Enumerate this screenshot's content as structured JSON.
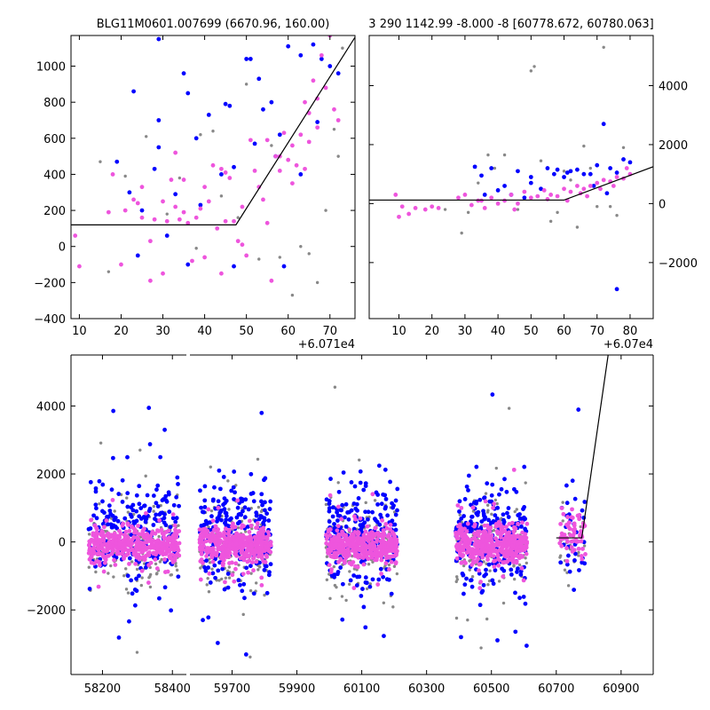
{
  "colors": {
    "blue": "#0000ff",
    "magenta": "#ee55dd",
    "gray": "#888888",
    "line": "#000000"
  },
  "chart_data": [
    {
      "type": "scatter",
      "title": "BLG11M0601.007699 (6670.96, 160.00)",
      "offset_label": "+6.071e4",
      "xlim": [
        8,
        76
      ],
      "ylim": [
        -400,
        1170
      ],
      "xticks": [
        10,
        20,
        30,
        40,
        50,
        60,
        70
      ],
      "yticks": [
        -400,
        -200,
        0,
        200,
        400,
        600,
        800,
        1000
      ],
      "model_line": [
        [
          8,
          120
        ],
        [
          47.5,
          120
        ],
        [
          76,
          1160
        ]
      ],
      "series": [
        {
          "color": "blue",
          "points": [
            [
              19,
              470
            ],
            [
              23,
              860
            ],
            [
              25,
              200
            ],
            [
              29,
              1150
            ],
            [
              29,
              700
            ],
            [
              29,
              550
            ],
            [
              33,
              290
            ],
            [
              35,
              960
            ],
            [
              36,
              850
            ],
            [
              38,
              600
            ],
            [
              41,
              730
            ],
            [
              44,
              400
            ],
            [
              45,
              790
            ],
            [
              47,
              440
            ],
            [
              50,
              1040
            ],
            [
              51,
              1040
            ],
            [
              53,
              930
            ],
            [
              54,
              760
            ],
            [
              56,
              800
            ],
            [
              58,
              620
            ],
            [
              60,
              1110
            ],
            [
              63,
              1060
            ],
            [
              66,
              1120
            ],
            [
              68,
              1040
            ],
            [
              70,
              1000
            ],
            [
              72,
              960
            ],
            [
              28,
              430
            ],
            [
              22,
              300
            ],
            [
              36,
              -100
            ],
            [
              47,
              -110
            ],
            [
              59,
              -110
            ],
            [
              31,
              60
            ],
            [
              46,
              780
            ],
            [
              24,
              -50
            ],
            [
              52,
              570
            ],
            [
              57,
              500
            ],
            [
              39,
              230
            ],
            [
              63,
              400
            ],
            [
              67,
              690
            ]
          ]
        },
        {
          "color": "magenta",
          "points": [
            [
              9,
              60
            ],
            [
              10,
              -110
            ],
            [
              17,
              190
            ],
            [
              18,
              400
            ],
            [
              21,
              200
            ],
            [
              23,
              260
            ],
            [
              24,
              240
            ],
            [
              25,
              160
            ],
            [
              27,
              30
            ],
            [
              28,
              150
            ],
            [
              30,
              250
            ],
            [
              31,
              140
            ],
            [
              32,
              370
            ],
            [
              33,
              220
            ],
            [
              34,
              150
            ],
            [
              35,
              190
            ],
            [
              36,
              130
            ],
            [
              37,
              -80
            ],
            [
              38,
              160
            ],
            [
              39,
              210
            ],
            [
              40,
              330
            ],
            [
              41,
              250
            ],
            [
              42,
              450
            ],
            [
              43,
              100
            ],
            [
              44,
              430
            ],
            [
              45,
              410
            ],
            [
              46,
              380
            ],
            [
              47,
              140
            ],
            [
              48,
              30
            ],
            [
              49,
              10
            ],
            [
              50,
              -50
            ],
            [
              51,
              590
            ],
            [
              52,
              420
            ],
            [
              53,
              330
            ],
            [
              54,
              260
            ],
            [
              55,
              590
            ],
            [
              56,
              -190
            ],
            [
              57,
              500
            ],
            [
              58,
              420
            ],
            [
              59,
              630
            ],
            [
              60,
              480
            ],
            [
              61,
              560
            ],
            [
              62,
              450
            ],
            [
              63,
              620
            ],
            [
              64,
              800
            ],
            [
              65,
              740
            ],
            [
              66,
              920
            ],
            [
              67,
              660
            ],
            [
              68,
              1060
            ],
            [
              69,
              880
            ],
            [
              70,
              1170
            ],
            [
              71,
              760
            ],
            [
              72,
              700
            ],
            [
              45,
              140
            ],
            [
              40,
              -60
            ],
            [
              30,
              -150
            ],
            [
              33,
              520
            ],
            [
              61,
              350
            ],
            [
              65,
              580
            ],
            [
              25,
              330
            ],
            [
              35,
              370
            ],
            [
              55,
              130
            ],
            [
              49,
              220
            ],
            [
              64,
              430
            ],
            [
              27,
              -190
            ],
            [
              20,
              -100
            ],
            [
              44,
              -150
            ],
            [
              58,
              500
            ],
            [
              67,
              820
            ]
          ]
        },
        {
          "color": "gray",
          "points": [
            [
              15,
              470
            ],
            [
              17,
              -140
            ],
            [
              21,
              390
            ],
            [
              26,
              610
            ],
            [
              31,
              180
            ],
            [
              34,
              380
            ],
            [
              39,
              620
            ],
            [
              42,
              640
            ],
            [
              44,
              280
            ],
            [
              48,
              160
            ],
            [
              53,
              -70
            ],
            [
              56,
              560
            ],
            [
              58,
              -60
            ],
            [
              63,
              0
            ],
            [
              65,
              -40
            ],
            [
              67,
              -200
            ],
            [
              69,
              200
            ],
            [
              72,
              500
            ],
            [
              73,
              1100
            ],
            [
              61,
              -270
            ],
            [
              38,
              -10
            ],
            [
              50,
              900
            ],
            [
              71,
              650
            ]
          ]
        }
      ]
    },
    {
      "type": "scatter",
      "title": "3 290 1142.99 -8.000 -8 [60778.672, 60780.063]",
      "offset_label": "+6.07e4",
      "xlim": [
        1,
        87
      ],
      "ylim": [
        -3900,
        5700
      ],
      "xticks": [
        10,
        20,
        30,
        40,
        50,
        60,
        70,
        80
      ],
      "yticks": [
        -2000,
        0,
        2000,
        4000
      ],
      "model_line": [
        [
          1,
          120
        ],
        [
          60,
          120
        ],
        [
          87,
          1250
        ]
      ],
      "series": [
        {
          "color": "blue",
          "points": [
            [
              33,
              1250
            ],
            [
              35,
              950
            ],
            [
              38,
              1200
            ],
            [
              40,
              450
            ],
            [
              42,
              600
            ],
            [
              46,
              1100
            ],
            [
              48,
              200
            ],
            [
              50,
              900
            ],
            [
              53,
              500
            ],
            [
              55,
              1200
            ],
            [
              57,
              1000
            ],
            [
              60,
              900
            ],
            [
              62,
              1100
            ],
            [
              64,
              1150
            ],
            [
              66,
              1000
            ],
            [
              68,
              1000
            ],
            [
              70,
              1300
            ],
            [
              72,
              2700
            ],
            [
              74,
              1200
            ],
            [
              76,
              1050
            ],
            [
              78,
              1500
            ],
            [
              80,
              1400
            ],
            [
              44,
              300
            ],
            [
              61,
              1050
            ],
            [
              76,
              -2900
            ],
            [
              69,
              600
            ],
            [
              73,
              350
            ],
            [
              50,
              700
            ],
            [
              36,
              300
            ],
            [
              58,
              1150
            ]
          ]
        },
        {
          "color": "magenta",
          "points": [
            [
              9,
              300
            ],
            [
              10,
              -450
            ],
            [
              11,
              -100
            ],
            [
              13,
              -350
            ],
            [
              15,
              -150
            ],
            [
              18,
              -200
            ],
            [
              20,
              -100
            ],
            [
              22,
              -150
            ],
            [
              28,
              200
            ],
            [
              30,
              300
            ],
            [
              32,
              -50
            ],
            [
              34,
              100
            ],
            [
              36,
              -150
            ],
            [
              38,
              200
            ],
            [
              40,
              0
            ],
            [
              42,
              100
            ],
            [
              44,
              300
            ],
            [
              46,
              0
            ],
            [
              48,
              400
            ],
            [
              50,
              200
            ],
            [
              52,
              250
            ],
            [
              54,
              450
            ],
            [
              56,
              300
            ],
            [
              58,
              250
            ],
            [
              60,
              500
            ],
            [
              62,
              400
            ],
            [
              64,
              600
            ],
            [
              66,
              500
            ],
            [
              68,
              600
            ],
            [
              70,
              700
            ],
            [
              72,
              800
            ],
            [
              74,
              750
            ],
            [
              76,
              900
            ],
            [
              78,
              850
            ],
            [
              80,
              1000
            ],
            [
              45,
              -200
            ],
            [
              55,
              150
            ],
            [
              65,
              350
            ],
            [
              75,
              600
            ],
            [
              79,
              1200
            ],
            [
              35,
              100
            ],
            [
              61,
              100
            ],
            [
              67,
              250
            ],
            [
              71,
              500
            ]
          ]
        },
        {
          "color": "gray",
          "points": [
            [
              24,
              -200
            ],
            [
              29,
              -1000
            ],
            [
              31,
              -300
            ],
            [
              37,
              1650
            ],
            [
              39,
              1200
            ],
            [
              42,
              1650
            ],
            [
              50,
              4500
            ],
            [
              51,
              4650
            ],
            [
              56,
              -600
            ],
            [
              58,
              -300
            ],
            [
              60,
              1100
            ],
            [
              62,
              800
            ],
            [
              64,
              -800
            ],
            [
              66,
              1950
            ],
            [
              68,
              1200
            ],
            [
              70,
              -100
            ],
            [
              72,
              5300
            ],
            [
              74,
              -100
            ],
            [
              76,
              -400
            ],
            [
              78,
              1900
            ],
            [
              80,
              1400
            ],
            [
              46,
              -200
            ],
            [
              53,
              1450
            ],
            [
              34,
              700
            ]
          ]
        }
      ]
    },
    {
      "type": "scatter",
      "title": "",
      "xticks": [
        58200,
        58400,
        59700,
        59900,
        60100,
        60300,
        60500,
        60700,
        60900
      ],
      "yticks": [
        -2000,
        0,
        2000,
        4000
      ],
      "ylim": [
        -3900,
        5500
      ],
      "segments": [
        {
          "xlim": [
            58110,
            58440
          ],
          "clusters": [
            [
              58160,
              58420
            ]
          ]
        },
        {
          "xlim": [
            59570,
            60999
          ],
          "clusters": [
            [
              59600,
              59820
            ],
            [
              59990,
              60210
            ],
            [
              60390,
              60610
            ],
            [
              60710,
              60790
            ]
          ]
        }
      ],
      "model_line": [
        [
          60700,
          120
        ],
        [
          60778.7,
          120
        ],
        [
          60860,
          5500
        ]
      ],
      "series_colors": [
        "blue",
        "magenta",
        "gray"
      ]
    }
  ]
}
